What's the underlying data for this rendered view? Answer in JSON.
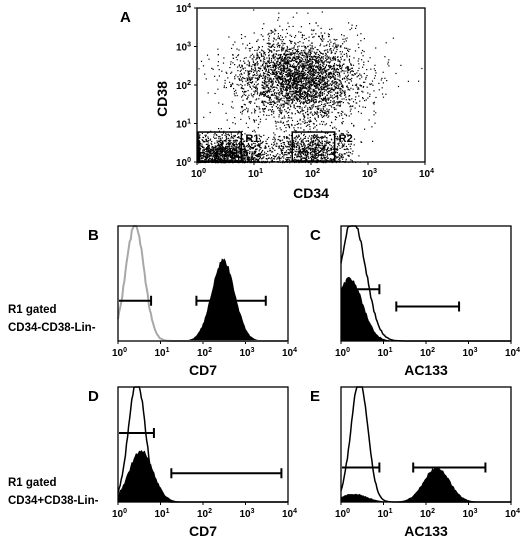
{
  "colors": {
    "ink": "#000000",
    "control": "#a8a8a8",
    "background": "#ffffff"
  },
  "side_labels": {
    "row1": [
      "R1 gated",
      "CD34-CD38-Lin-"
    ],
    "row2": [
      "R1 gated",
      "CD34+CD38-Lin-"
    ]
  },
  "chart_data": [
    {
      "panel": "A",
      "type": "scatter",
      "xlabel": "CD34",
      "ylabel": "CD38",
      "x_scale": "log",
      "y_scale": "log",
      "xlim": [
        1,
        10000
      ],
      "ylim": [
        1,
        10000
      ],
      "x_ticks": [
        "10",
        "10",
        "10",
        "10",
        "10"
      ],
      "x_exps": [
        "0",
        "1",
        "2",
        "3",
        "4"
      ],
      "y_ticks": [
        "10",
        "10",
        "10",
        "10",
        "10"
      ],
      "y_exps": [
        "0",
        "1",
        "2",
        "3",
        "4"
      ],
      "gates": [
        {
          "name": "R1",
          "x": [
            1,
            6
          ],
          "y": [
            1,
            6
          ]
        },
        {
          "name": "R2",
          "x": [
            45,
            260
          ],
          "y": [
            1,
            6
          ]
        }
      ],
      "clusters": [
        {
          "center": [
            60,
            150
          ],
          "spread": [
            0.55,
            0.55
          ],
          "weight": 0.55
        },
        {
          "center": [
            3,
            1.6
          ],
          "spread": [
            0.4,
            0.25
          ],
          "weight": 0.3
        },
        {
          "center": [
            110,
            2
          ],
          "spread": [
            0.35,
            0.25
          ],
          "weight": 0.15
        }
      ],
      "n_events": 6000
    },
    {
      "panel": "B",
      "type": "area",
      "xlabel": "CD7",
      "x_scale": "log",
      "xlim": [
        1,
        10000
      ],
      "x_ticks": [
        "10",
        "10",
        "10",
        "10",
        "10"
      ],
      "x_exps": [
        "0",
        "1",
        "2",
        "3",
        "4"
      ],
      "filled": {
        "peaks": [
          {
            "center": 300,
            "sigma": 0.27,
            "height": 0.7
          }
        ]
      },
      "control": {
        "peaks": [
          {
            "center": 2.5,
            "sigma": 0.22,
            "height": 1.0
          }
        ]
      },
      "markers": [
        {
          "range": [
            1,
            6
          ],
          "level": 0.35
        },
        {
          "range": [
            70,
            3000
          ],
          "level": 0.35
        }
      ]
    },
    {
      "panel": "C",
      "type": "area",
      "xlabel": "AC133",
      "x_scale": "log",
      "xlim": [
        1,
        10000
      ],
      "x_ticks": [
        "10",
        "10",
        "10",
        "10",
        "10"
      ],
      "x_exps": [
        "0",
        "1",
        "2",
        "3",
        "4"
      ],
      "filled": {
        "peaks": [
          {
            "center": 1.6,
            "sigma": 0.3,
            "height": 0.55
          }
        ]
      },
      "control": {
        "peaks": [
          {
            "center": 1.9,
            "sigma": 0.3,
            "height": 1.05
          }
        ]
      },
      "markers": [
        {
          "range": [
            1,
            8
          ],
          "level": 0.45
        },
        {
          "range": [
            20,
            600
          ],
          "level": 0.3
        }
      ]
    },
    {
      "panel": "D",
      "type": "area",
      "xlabel": "CD7",
      "x_scale": "log",
      "xlim": [
        1,
        10000
      ],
      "x_ticks": [
        "10",
        "10",
        "10",
        "10",
        "10"
      ],
      "x_exps": [
        "0",
        "1",
        "2",
        "3",
        "4"
      ],
      "filled": {
        "peaks": [
          {
            "center": 3.5,
            "sigma": 0.28,
            "height": 0.45
          }
        ]
      },
      "control": {
        "peaks": [
          {
            "center": 2.8,
            "sigma": 0.2,
            "height": 1.05
          }
        ]
      },
      "markers": [
        {
          "range": [
            1,
            7
          ],
          "level": 0.6
        },
        {
          "range": [
            18,
            7000
          ],
          "level": 0.25
        }
      ]
    },
    {
      "panel": "E",
      "type": "area",
      "xlabel": "AC133",
      "x_scale": "log",
      "xlim": [
        1,
        10000
      ],
      "x_ticks": [
        "10",
        "10",
        "10",
        "10",
        "10"
      ],
      "x_exps": [
        "0",
        "1",
        "2",
        "3",
        "4"
      ],
      "filled": {
        "peaks": [
          {
            "center": 2,
            "sigma": 0.3,
            "height": 0.07
          },
          {
            "center": 180,
            "sigma": 0.3,
            "height": 0.3
          }
        ]
      },
      "control": {
        "peaks": [
          {
            "center": 2.7,
            "sigma": 0.2,
            "height": 1.05
          }
        ]
      },
      "markers": [
        {
          "range": [
            1,
            8
          ],
          "level": 0.3
        },
        {
          "range": [
            50,
            2500
          ],
          "level": 0.3
        }
      ]
    }
  ]
}
